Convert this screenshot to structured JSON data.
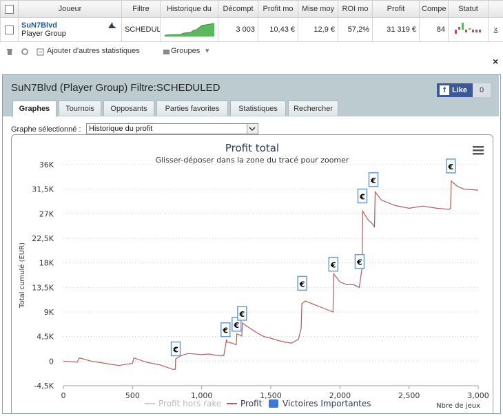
{
  "table": {
    "headers": [
      "Joueur",
      "Filtre",
      "Historique du",
      "Décompt",
      "Profit mo",
      "Mise moy",
      "ROI mo",
      "Profit",
      "Compe",
      "Statut"
    ],
    "row": {
      "player_name": "SuN7Blvd",
      "player_group": "Player Group",
      "filter": "SCHEDULED",
      "count": "3 003",
      "avg_profit": "10,43 €",
      "avg_stake": "12,9 €",
      "avg_roi": "57,2%",
      "profit": "31 319 €",
      "competition": "84",
      "remove": "x"
    }
  },
  "toolbar": {
    "add_stats": "Ajouter d'autres statistiques",
    "groups": "Groupes"
  },
  "panel": {
    "title": "SuN7Blvd (Player Group) Filtre:SCHEDULED",
    "close": "×",
    "facebook_like": "Like",
    "facebook_count": "0",
    "tabs": [
      "Graphes",
      "Tournois",
      "Opposants",
      "Parties favorites",
      "Statistiques",
      "Rechercher"
    ],
    "selected_label": "Graphe sélectionné :",
    "selected_value": "Historique du profit"
  },
  "chart_data": {
    "type": "line",
    "title": "Profit total",
    "subtitle": "Glisser-déposer dans la zone du tracé pour zoomer",
    "ylabel": "Total cumulé (EUR)",
    "xlabel": "Nbre de jeux",
    "ylim": [
      -4500,
      36000
    ],
    "xlim": [
      0,
      3000
    ],
    "y_ticks": [
      "36K",
      "31,5K",
      "27K",
      "22,5K",
      "18K",
      "13,5K",
      "9K",
      "4,5K",
      "0",
      "-4,5K"
    ],
    "x_ticks": [
      "0",
      "500",
      "1,000",
      "1,500",
      "2,000",
      "2,500",
      "3,000"
    ],
    "legend": [
      "Profit hors rake",
      "Profit",
      "Victoires Importantes"
    ],
    "colors": {
      "profit": "#b55a5a",
      "profit_hors_rake": "#cccccc",
      "victoires": "#3b78d8"
    },
    "series": [
      {
        "name": "Profit",
        "x": [
          0,
          100,
          115,
          200,
          300,
          400,
          500,
          510,
          600,
          700,
          790,
          810,
          812,
          850,
          900,
          1000,
          1050,
          1100,
          1160,
          1180,
          1182,
          1220,
          1250,
          1255,
          1290,
          1295,
          1320,
          1400,
          1450,
          1500,
          1550,
          1600,
          1650,
          1700,
          1720,
          1725,
          1750,
          1800,
          1900,
          1950,
          1955,
          2000,
          2050,
          2100,
          2140,
          2160,
          2165,
          2200,
          2240,
          2250,
          2255,
          2300,
          2400,
          2500,
          2600,
          2700,
          2790,
          2800,
          2805,
          2850,
          2900,
          3000
        ],
        "y": [
          0,
          -200,
          600,
          0,
          -400,
          -800,
          -400,
          600,
          -200,
          -700,
          -1500,
          -1500,
          400,
          1000,
          1400,
          1200,
          1300,
          1100,
          1000,
          4000,
          3500,
          3300,
          3000,
          5000,
          4600,
          7000,
          6500,
          5200,
          4500,
          4200,
          3800,
          3500,
          3300,
          4000,
          6000,
          10500,
          11000,
          10500,
          9500,
          9000,
          16000,
          14500,
          14000,
          14000,
          13500,
          17000,
          27500,
          26000,
          25000,
          24500,
          31000,
          29500,
          28500,
          28000,
          28400,
          28000,
          27800,
          28000,
          33000,
          32000,
          31500,
          31319
        ]
      }
    ],
    "important_wins": [
      {
        "x": 810,
        "y": 2000
      },
      {
        "x": 1170,
        "y": 5500
      },
      {
        "x": 1250,
        "y": 6500
      },
      {
        "x": 1290,
        "y": 8500
      },
      {
        "x": 1725,
        "y": 14000
      },
      {
        "x": 1950,
        "y": 17500
      },
      {
        "x": 2140,
        "y": 18000
      },
      {
        "x": 2160,
        "y": 30000
      },
      {
        "x": 2240,
        "y": 33000
      },
      {
        "x": 2800,
        "y": 35500
      }
    ]
  }
}
